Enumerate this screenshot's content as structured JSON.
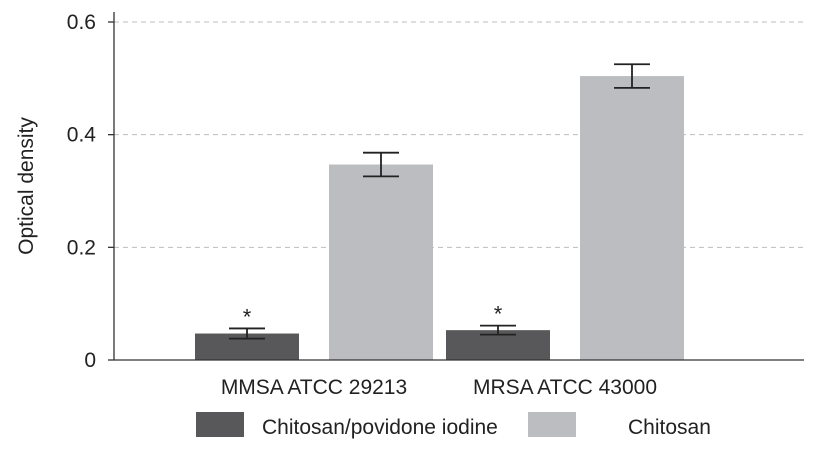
{
  "chart_data": {
    "type": "bar",
    "title": "",
    "xlabel": "",
    "ylabel": "Optical density",
    "ylim": [
      0,
      0.6
    ],
    "yticks": [
      {
        "value": 0,
        "label": "0"
      },
      {
        "value": 0.2,
        "label": "0.2"
      },
      {
        "value": 0.4,
        "label": "0.4"
      },
      {
        "value": 0.6,
        "label": "0.6"
      }
    ],
    "grid": true,
    "legend_position": "bottom",
    "categories": [
      "MMSA ATCC 29213",
      "MRSA ATCC 43000"
    ],
    "series": [
      {
        "name": "Chitosan/povidone iodine",
        "color": "#58585a",
        "values": [
          0.047,
          0.053
        ],
        "errors": [
          0.009,
          0.008
        ],
        "annotations": [
          "*",
          "*"
        ]
      },
      {
        "name": "Chitosan",
        "color": "#bcbdc0",
        "values": [
          0.347,
          0.504
        ],
        "errors": [
          0.021,
          0.021
        ],
        "annotations": [
          "",
          ""
        ]
      }
    ]
  }
}
